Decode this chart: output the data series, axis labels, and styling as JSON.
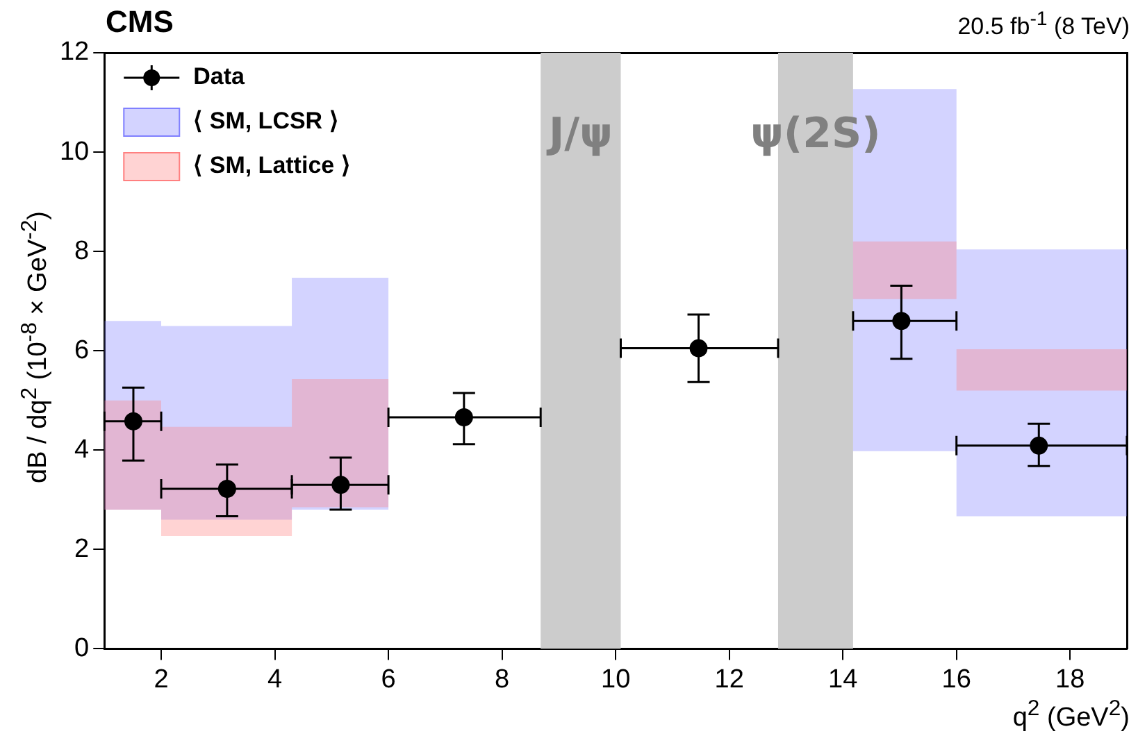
{
  "chart_data": {
    "type": "scatter",
    "xlabel": "q$^{2}$ (GeV$^{2}$)",
    "ylabel": "dB / dq$^{2}$ (10$^{-8}$ × GeV$^{-2}$)",
    "annotations": [
      "CMS",
      "20.5 fb$^{-1}$ (8 TeV)"
    ],
    "xlim": [
      1,
      19
    ],
    "xticks": [
      2,
      4,
      6,
      8,
      10,
      12,
      14,
      16,
      18
    ],
    "ylim": [
      0,
      12
    ],
    "yticks": [
      0,
      2,
      4,
      6,
      8,
      10,
      12
    ],
    "grid": false,
    "legend": "top left",
    "marker": "circle",
    "bands": [
      {
        "axis": "x",
        "from": 8.68,
        "to": 10.09,
        "label": "J/ψ",
        "color": "#cccccc"
      },
      {
        "axis": "x",
        "from": 12.86,
        "to": 14.18,
        "label": "ψ(2S)",
        "color": "#cccccc"
      }
    ],
    "series": [
      {
        "name": "Data",
        "type": "scatter",
        "color": "#000000",
        "x": [
          1.51,
          3.16,
          5.16,
          7.33,
          11.46,
          15.03,
          17.45
        ],
        "values": [
          4.58,
          3.22,
          3.3,
          4.66,
          6.05,
          6.6,
          4.09
        ],
        "errors": [
          [
            3.79,
            5.26
          ],
          [
            2.67,
            3.71
          ],
          [
            2.8,
            3.85
          ],
          [
            4.12,
            5.15
          ],
          [
            5.37,
            6.73
          ],
          [
            5.84,
            7.31
          ],
          [
            3.68,
            4.53
          ]
        ],
        "xerrors": [
          [
            1,
            2
          ],
          [
            2,
            4.3
          ],
          [
            4.3,
            6
          ],
          [
            6,
            8.68
          ],
          [
            10.09,
            12.86
          ],
          [
            14.18,
            16
          ],
          [
            16,
            19
          ]
        ]
      },
      {
        "name": "⟨ SM, LCSR ⟩",
        "type": "step",
        "color": "#8080ff",
        "x": [
          1,
          2,
          4.3,
          6,
          14.18,
          16,
          19
        ],
        "values": [
          null,
          null,
          null,
          null,
          null,
          null,
          null
        ],
        "lower": [
          2.8,
          2.6,
          2.8,
          null,
          3.98,
          2.67,
          2.67
        ],
        "upper": [
          6.6,
          6.5,
          7.47,
          null,
          11.27,
          8.04,
          8.04
        ]
      },
      {
        "name": "⟨ SM, Lattice ⟩",
        "type": "step",
        "color": "#ff8080",
        "x": [
          1,
          2,
          4.3,
          6,
          14.18,
          16,
          19
        ],
        "values": [
          null,
          null,
          null,
          null,
          null,
          null,
          null
        ],
        "lower": [
          2.8,
          2.27,
          2.85,
          null,
          7.04,
          5.2,
          5.2
        ],
        "upper": [
          5.0,
          4.47,
          5.43,
          null,
          8.2,
          6.03,
          6.03
        ]
      }
    ]
  }
}
